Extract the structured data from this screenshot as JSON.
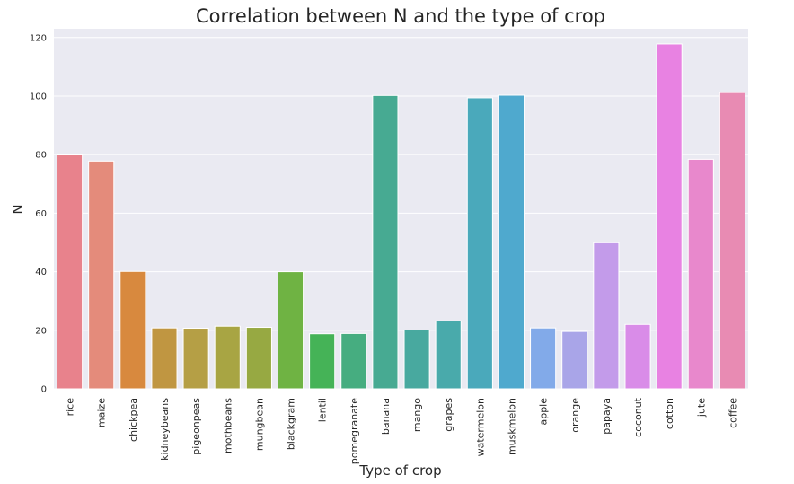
{
  "chart_data": {
    "type": "bar",
    "title": "Correlation between N and the type of crop",
    "xlabel": "Type of crop",
    "ylabel": "N",
    "ylim": [
      0,
      123
    ],
    "yticks": [
      0,
      20,
      40,
      60,
      80,
      100,
      120
    ],
    "grid": true,
    "categories": [
      "rice",
      "maize",
      "chickpea",
      "kidneybeans",
      "pigeonpeas",
      "mothbeans",
      "mungbean",
      "blackgram",
      "lentil",
      "pomegranate",
      "banana",
      "mango",
      "grapes",
      "watermelon",
      "muskmelon",
      "apple",
      "orange",
      "papaya",
      "coconut",
      "cotton",
      "jute",
      "coffee"
    ],
    "values": [
      79.9,
      77.8,
      40.1,
      20.8,
      20.7,
      21.4,
      21.0,
      40.0,
      18.8,
      18.9,
      100.2,
      20.1,
      23.2,
      99.4,
      100.3,
      20.8,
      19.6,
      49.9,
      22.0,
      117.8,
      78.4,
      101.2
    ],
    "colors": [
      "#e8828c",
      "#e48b7b",
      "#d8893e",
      "#c09641",
      "#b59f45",
      "#a8a543",
      "#97a942",
      "#6fb343",
      "#45b357",
      "#46ad80",
      "#47aa92",
      "#48a99f",
      "#49aaab",
      "#4aa9bb",
      "#4fa9ce",
      "#82aae9",
      "#a9a5e8",
      "#c39bea",
      "#d98ce8",
      "#e882e2",
      "#e888cc",
      "#e88bb3"
    ]
  }
}
